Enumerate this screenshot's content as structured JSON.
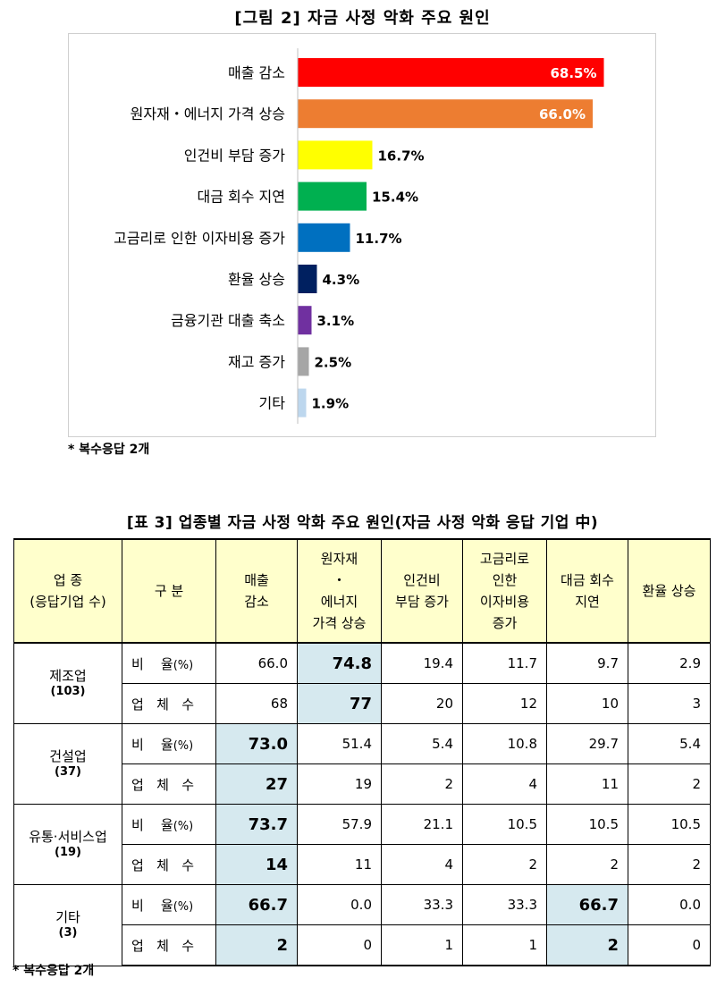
{
  "figure": {
    "title": "[그림 2] 자금 사정 악화 주요 원인",
    "note": "* 복수응답 2개"
  },
  "chart_data": {
    "type": "bar",
    "orientation": "horizontal",
    "categories": [
      "매출 감소",
      "원자재・에너지 가격 상승",
      "인건비 부담 증가",
      "대금 회수 지연",
      "고금리로 인한 이자비용 증가",
      "환율 상승",
      "금융기관 대출 축소",
      "재고 증가",
      "기타"
    ],
    "values": [
      68.5,
      66.0,
      16.7,
      15.4,
      11.7,
      4.3,
      3.1,
      2.5,
      1.9
    ],
    "value_labels": [
      "68.5%",
      "66.0%",
      "16.7%",
      "15.4%",
      "11.7%",
      "4.3%",
      "3.1%",
      "2.5%",
      "1.9%"
    ],
    "colors": [
      "#ff0000",
      "#ed7d31",
      "#ffff00",
      "#00b050",
      "#0070c0",
      "#002060",
      "#7030a0",
      "#a6a6a6",
      "#bdd7ee"
    ],
    "label_inside": [
      true,
      true,
      false,
      false,
      false,
      false,
      false,
      false,
      false
    ],
    "xlim": [
      0,
      100
    ],
    "grid": false,
    "title": "[그림 2] 자금 사정 악화 주요 원인"
  },
  "table": {
    "title": "[표 3] 업종별 자금 사정 악화 주요 원인(자금 사정 악화 응답 기업 中)",
    "headers": {
      "industry": [
        "업  종",
        "(응답기업 수)"
      ],
      "category": "구  분",
      "cols": [
        [
          "매출",
          "감소"
        ],
        [
          "원자재",
          "・",
          "에너지",
          "가격 상승"
        ],
        [
          "인건비",
          "부담 증가"
        ],
        [
          "고금리로",
          "인한",
          "이자비용",
          "증가"
        ],
        [
          "대금 회수",
          "지연"
        ],
        [
          "환율 상승"
        ]
      ]
    },
    "row_labels": {
      "ratio": "비    율",
      "ratio_unit": "(%)",
      "count": "업   체   수"
    },
    "groups": [
      {
        "name": "제조업",
        "n": "(103)",
        "ratio": [
          "66.0",
          "74.8",
          "19.4",
          "11.7",
          "9.7",
          "2.9"
        ],
        "count": [
          "68",
          "77",
          "20",
          "12",
          "10",
          "3"
        ],
        "highlight": [
          1
        ]
      },
      {
        "name": "건설업",
        "n": "(37)",
        "ratio": [
          "73.0",
          "51.4",
          "5.4",
          "10.8",
          "29.7",
          "5.4"
        ],
        "count": [
          "27",
          "19",
          "2",
          "4",
          "11",
          "2"
        ],
        "highlight": [
          0
        ]
      },
      {
        "name": "유통·서비스업",
        "n": "(19)",
        "ratio": [
          "73.7",
          "57.9",
          "21.1",
          "10.5",
          "10.5",
          "10.5"
        ],
        "count": [
          "14",
          "11",
          "4",
          "2",
          "2",
          "2"
        ],
        "highlight": [
          0
        ]
      },
      {
        "name": "기타",
        "n": "(3)",
        "ratio": [
          "66.7",
          "0.0",
          "33.3",
          "33.3",
          "66.7",
          "0.0"
        ],
        "count": [
          "2",
          "0",
          "1",
          "1",
          "2",
          "0"
        ],
        "highlight": [
          0,
          4
        ]
      }
    ],
    "note": "* 복수응답 2개"
  }
}
